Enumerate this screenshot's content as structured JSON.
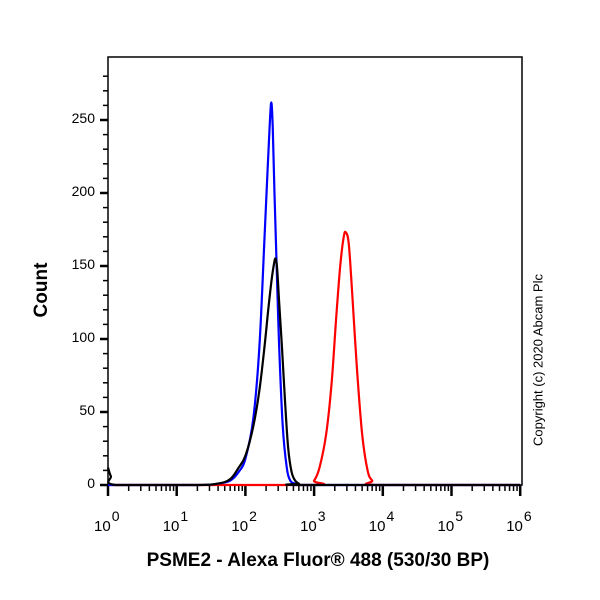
{
  "chart_data": {
    "type": "line",
    "title": "",
    "xlabel": "PSME2 - Alexa Fluor® 488 (530/30 BP)",
    "ylabel": "Count",
    "xscale": "log (biexponential display)",
    "xlim": [
      1,
      1000000
    ],
    "ylim": [
      0,
      285
    ],
    "x_ticks": [
      {
        "base": "10",
        "exp": "0",
        "value": 1
      },
      {
        "base": "10",
        "exp": "1",
        "value": 10
      },
      {
        "base": "10",
        "exp": "2",
        "value": 100
      },
      {
        "base": "10",
        "exp": "3",
        "value": 1000
      },
      {
        "base": "10",
        "exp": "4",
        "value": 10000
      },
      {
        "base": "10",
        "exp": "5",
        "value": 100000
      },
      {
        "base": "10",
        "exp": "6",
        "value": 1000000
      }
    ],
    "y_ticks": [
      0,
      50,
      100,
      150,
      200,
      250
    ],
    "grid": false,
    "legend": null,
    "annotation": "Copyright (c) 2020 Abcam Plc",
    "series": [
      {
        "name": "Blue histogram",
        "color": "#0000ff",
        "x": [
          1,
          20,
          40,
          60,
          80,
          100,
          130,
          160,
          190,
          210,
          225,
          238,
          250,
          265,
          285,
          310,
          350,
          400,
          450,
          520,
          600,
          700,
          850,
          1000000
        ],
        "y": [
          0,
          0,
          1,
          3,
          9,
          18,
          45,
          95,
          170,
          215,
          245,
          262,
          245,
          200,
          150,
          95,
          40,
          12,
          3,
          1,
          0,
          0,
          0,
          0
        ]
      },
      {
        "name": "Black histogram",
        "color": "#000000",
        "x": [
          1,
          1.1,
          1.3,
          20,
          40,
          60,
          80,
          100,
          130,
          160,
          190,
          215,
          240,
          262,
          275,
          290,
          310,
          340,
          380,
          420,
          470,
          530,
          600,
          700,
          1000000
        ],
        "y": [
          12,
          6,
          0,
          0,
          1,
          4,
          12,
          20,
          40,
          65,
          95,
          120,
          140,
          152,
          155,
          148,
          125,
          95,
          55,
          25,
          9,
          3,
          1,
          0,
          0
        ]
      },
      {
        "name": "Red histogram",
        "color": "#ff0000",
        "x": [
          1,
          800,
          1000,
          1200,
          1500,
          1800,
          2100,
          2400,
          2700,
          2900,
          3200,
          3600,
          4200,
          5000,
          6000,
          7000,
          8500,
          1000000
        ],
        "y": [
          0,
          0,
          3,
          12,
          35,
          70,
          115,
          150,
          170,
          173,
          165,
          130,
          80,
          35,
          10,
          3,
          0,
          0
        ]
      }
    ]
  },
  "labels": {
    "ylabel": "Count",
    "xlabel": "PSME2 - Alexa Fluor® 488 (530/30 BP)",
    "copyright": "Copyright (c) 2020 Abcam Plc"
  }
}
